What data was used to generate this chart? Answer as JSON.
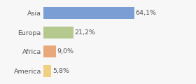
{
  "categories": [
    "Asia",
    "Europa",
    "Africa",
    "America"
  ],
  "values": [
    64.1,
    21.2,
    9.0,
    5.8
  ],
  "labels": [
    "64,1%",
    "21,2%",
    "9,0%",
    "5,8%"
  ],
  "bar_colors": [
    "#7b9fd4",
    "#b5c98e",
    "#e8a87c",
    "#f0d080"
  ],
  "background_color": "#f7f7f7",
  "xlim": [
    0,
    105
  ],
  "bar_height": 0.62,
  "label_fontsize": 6.8,
  "category_fontsize": 6.8,
  "label_color": "#555555",
  "category_color": "#555555"
}
